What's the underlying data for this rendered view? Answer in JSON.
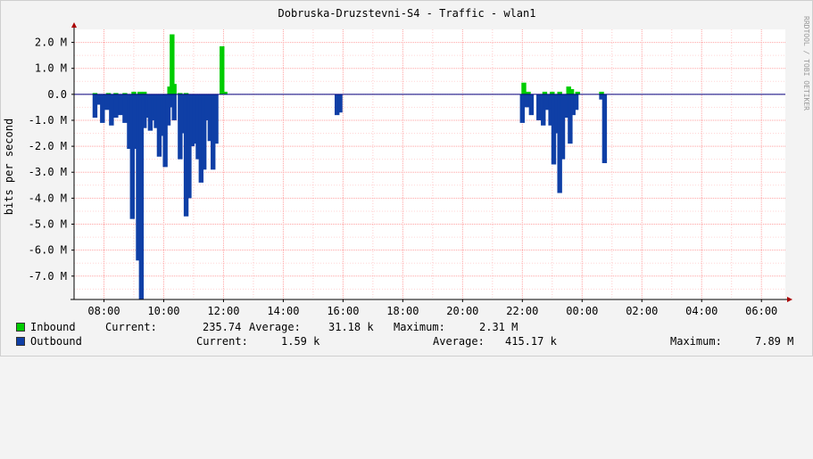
{
  "title": "Dobruska-Druzstevni-S4 - Traffic - wlan1",
  "watermark": "RRDTOOL / TOBI OETIKER",
  "colors": {
    "inbound": "#00cc00",
    "outbound": "#0f3fa6",
    "grid": "#ff9999",
    "background": "#ffffff",
    "axis": "#000000",
    "zero_line": "#000080"
  },
  "legend": {
    "inbound": {
      "name": "Inbound",
      "current_label": "Current:",
      "current": "235.74",
      "average_label": "Average:",
      "average": "31.18 k",
      "maximum_label": "Maximum:",
      "maximum": "2.31 M"
    },
    "outbound": {
      "name": "Outbound",
      "current_label": "Current:",
      "current": "1.59 k",
      "average_label": "Average:",
      "average": "415.17 k",
      "maximum_label": "Maximum:",
      "maximum": "7.89 M"
    }
  },
  "chart_data": {
    "type": "area",
    "title": "Dobruska-Druzstevni-S4 - Traffic - wlan1",
    "xlabel": "",
    "ylabel": "bits per second",
    "x_unit": "hours since 07:00",
    "xlim": [
      0,
      23.8
    ],
    "ylim": [
      -7.9,
      2.5
    ],
    "y_unit": "M",
    "x_ticks": [
      "08:00",
      "10:00",
      "12:00",
      "14:00",
      "16:00",
      "18:00",
      "20:00",
      "22:00",
      "00:00",
      "02:00",
      "04:00",
      "06:00"
    ],
    "y_ticks": [
      {
        "value": 2.0,
        "label": "2.0 M"
      },
      {
        "value": 1.0,
        "label": "1.0 M"
      },
      {
        "value": 0.0,
        "label": "0.0"
      },
      {
        "value": -1.0,
        "label": "-1.0 M"
      },
      {
        "value": -2.0,
        "label": "-2.0 M"
      },
      {
        "value": -3.0,
        "label": "-3.0 M"
      },
      {
        "value": -4.0,
        "label": "-4.0 M"
      },
      {
        "value": -5.0,
        "label": "-5.0 M"
      },
      {
        "value": -6.0,
        "label": "-6.0 M"
      },
      {
        "value": -7.0,
        "label": "-7.0 M"
      }
    ],
    "grid": true,
    "series": [
      {
        "name": "Inbound",
        "values": [
          [
            0.7,
            0.05
          ],
          [
            1.15,
            0.05
          ],
          [
            1.4,
            0.05
          ],
          [
            1.7,
            0.05
          ],
          [
            2.0,
            0.1
          ],
          [
            2.2,
            0.1
          ],
          [
            2.35,
            0.1
          ],
          [
            3.2,
            0.3
          ],
          [
            3.28,
            2.31
          ],
          [
            3.35,
            0.4
          ],
          [
            3.55,
            0.05
          ],
          [
            3.75,
            0.05
          ],
          [
            4.95,
            1.85
          ],
          [
            5.05,
            0.1
          ],
          [
            15.05,
            0.45
          ],
          [
            15.2,
            0.1
          ],
          [
            15.75,
            0.1
          ],
          [
            16.0,
            0.1
          ],
          [
            16.25,
            0.1
          ],
          [
            16.55,
            0.3
          ],
          [
            16.65,
            0.2
          ],
          [
            16.85,
            0.1
          ],
          [
            17.65,
            0.1
          ]
        ]
      },
      {
        "name": "Outbound",
        "values": [
          [
            0.7,
            -0.9
          ],
          [
            0.8,
            -0.4
          ],
          [
            0.95,
            -1.1
          ],
          [
            1.1,
            -0.6
          ],
          [
            1.25,
            -1.2
          ],
          [
            1.4,
            -0.9
          ],
          [
            1.55,
            -0.8
          ],
          [
            1.7,
            -1.1
          ],
          [
            1.85,
            -2.1
          ],
          [
            1.95,
            -4.8
          ],
          [
            2.05,
            -2.1
          ],
          [
            2.15,
            -6.4
          ],
          [
            2.25,
            -7.89
          ],
          [
            2.35,
            -1.3
          ],
          [
            2.45,
            -0.9
          ],
          [
            2.55,
            -1.4
          ],
          [
            2.65,
            -1.0
          ],
          [
            2.75,
            -1.3
          ],
          [
            2.85,
            -2.4
          ],
          [
            2.95,
            -1.6
          ],
          [
            3.05,
            -2.8
          ],
          [
            3.15,
            -1.2
          ],
          [
            3.25,
            -0.5
          ],
          [
            3.35,
            -1.0
          ],
          [
            3.55,
            -2.5
          ],
          [
            3.65,
            -1.5
          ],
          [
            3.75,
            -4.7
          ],
          [
            3.85,
            -4.0
          ],
          [
            3.95,
            -2.0
          ],
          [
            4.05,
            -1.9
          ],
          [
            4.15,
            -2.5
          ],
          [
            4.25,
            -3.4
          ],
          [
            4.35,
            -2.9
          ],
          [
            4.45,
            -1.0
          ],
          [
            4.55,
            -1.8
          ],
          [
            4.65,
            -2.9
          ],
          [
            4.75,
            -1.9
          ],
          [
            8.8,
            -0.8
          ],
          [
            8.9,
            -0.7
          ],
          [
            15.0,
            -1.1
          ],
          [
            15.15,
            -0.5
          ],
          [
            15.3,
            -0.8
          ],
          [
            15.55,
            -1.0
          ],
          [
            15.7,
            -1.2
          ],
          [
            15.8,
            -0.6
          ],
          [
            15.95,
            -1.2
          ],
          [
            16.05,
            -2.7
          ],
          [
            16.15,
            -1.5
          ],
          [
            16.25,
            -3.8
          ],
          [
            16.35,
            -2.5
          ],
          [
            16.45,
            -0.9
          ],
          [
            16.6,
            -1.9
          ],
          [
            16.7,
            -0.8
          ],
          [
            16.8,
            -0.6
          ],
          [
            17.65,
            -0.2
          ],
          [
            17.75,
            -2.65
          ]
        ]
      }
    ]
  }
}
